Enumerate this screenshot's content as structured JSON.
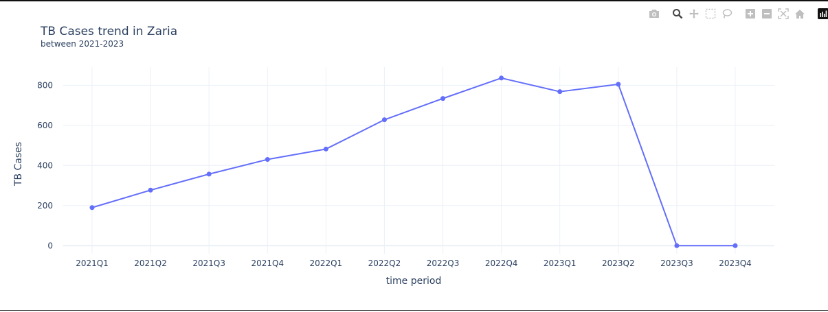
{
  "toolbar": {
    "buttons": [
      {
        "name": "camera-icon"
      },
      {
        "name": "zoom-icon"
      },
      {
        "name": "pan-icon"
      },
      {
        "name": "box-select-icon"
      },
      {
        "name": "lasso-select-icon"
      },
      {
        "name": "zoom-in-icon"
      },
      {
        "name": "zoom-out-icon"
      },
      {
        "name": "autoscale-icon"
      },
      {
        "name": "reset-axes-icon"
      },
      {
        "name": "plotly-logo-icon"
      }
    ]
  },
  "chart_data": {
    "type": "line",
    "title": "TB Cases trend in Zaria",
    "subtitle": "between 2021-2023",
    "xlabel": "time period",
    "ylabel": "TB Cases",
    "categories": [
      "2021Q1",
      "2021Q2",
      "2021Q3",
      "2021Q4",
      "2022Q1",
      "2022Q2",
      "2022Q3",
      "2022Q4",
      "2023Q1",
      "2023Q2",
      "2023Q3",
      "2023Q4"
    ],
    "values": [
      190,
      277,
      357,
      430,
      482,
      628,
      734,
      836,
      768,
      805,
      0,
      0
    ],
    "yticks": [
      0,
      200,
      400,
      600,
      800
    ],
    "ylim": [
      -40,
      890
    ],
    "grid": true,
    "colors": {
      "line": "#636efa",
      "grid": "#ebf0f8",
      "zeroline": "#ebf0f8",
      "text": "#2a3f5f"
    }
  }
}
